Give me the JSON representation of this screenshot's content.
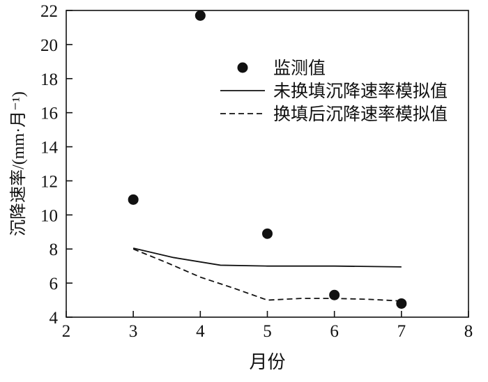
{
  "chart_data": {
    "type": "scatter+line",
    "title": "",
    "xlabel": "月份",
    "ylabel": "沉降速率/(mm·月⁻¹)",
    "xlim": [
      2,
      8
    ],
    "ylim": [
      4,
      22
    ],
    "xticks": [
      2,
      3,
      4,
      5,
      6,
      7,
      8
    ],
    "yticks": [
      4,
      6,
      8,
      10,
      12,
      14,
      16,
      18,
      20,
      22
    ],
    "grid": false,
    "legend_position": "upper-center-inside",
    "colors": {
      "line": "#111111",
      "marker": "#111111",
      "frame": "#111111",
      "background": "#ffffff"
    },
    "series": [
      {
        "name": "监测值",
        "type": "scatter",
        "marker": "circle",
        "points": [
          [
            3,
            10.9
          ],
          [
            4,
            21.7
          ],
          [
            5,
            8.9
          ],
          [
            6,
            5.3
          ],
          [
            7,
            4.8
          ]
        ]
      },
      {
        "name": "未换填沉降速率模拟值",
        "type": "line",
        "style": "solid",
        "points": [
          [
            3,
            8.05
          ],
          [
            3.6,
            7.5
          ],
          [
            4.3,
            7.05
          ],
          [
            5,
            7.0
          ],
          [
            6,
            7.0
          ],
          [
            7,
            6.95
          ]
        ]
      },
      {
        "name": "换填后沉降速率模拟值",
        "type": "line",
        "style": "dashed",
        "points": [
          [
            3,
            8.0
          ],
          [
            3.5,
            7.2
          ],
          [
            4,
            6.35
          ],
          [
            4.5,
            5.7
          ],
          [
            5,
            5.0
          ],
          [
            5.5,
            5.1
          ],
          [
            6,
            5.1
          ],
          [
            6.5,
            5.05
          ],
          [
            7,
            4.95
          ]
        ]
      }
    ]
  }
}
